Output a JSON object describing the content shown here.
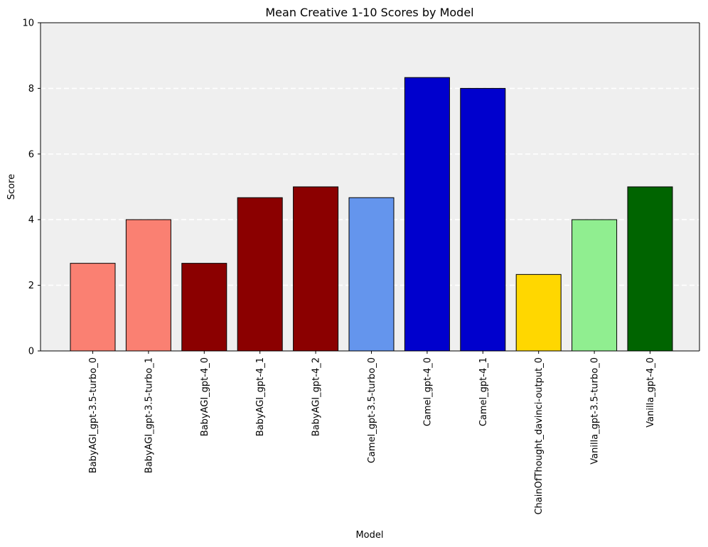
{
  "chart_data": {
    "type": "bar",
    "title": "Mean Creative 1-10 Scores by Model",
    "xlabel": "Model",
    "ylabel": "Score",
    "ylim": [
      0,
      10
    ],
    "yticks": [
      0,
      2,
      4,
      6,
      8,
      10
    ],
    "grid": "horizontal dashed",
    "categories": [
      "BabyAGI_gpt-3.5-turbo_0",
      "BabyAGI_gpt-3.5-turbo_1",
      "BabyAGI_gpt-4_0",
      "BabyAGI_gpt-4_1",
      "BabyAGI_gpt-4_2",
      "Camel_gpt-3.5-turbo_0",
      "Camel_gpt-4_0",
      "Camel_gpt-4_1",
      "ChainOfThought_davinci-output_0",
      "Vanilla_gpt-3.5-turbo_0",
      "Vanilla_gpt-4_0"
    ],
    "values": [
      2.67,
      4.0,
      2.67,
      4.67,
      5.0,
      4.67,
      8.33,
      8.0,
      2.33,
      4.0,
      5.0
    ],
    "colors": [
      "#fa8072",
      "#fa8072",
      "#8b0000",
      "#8b0000",
      "#8b0000",
      "#6495ed",
      "#0000cd",
      "#0000cd",
      "#ffd700",
      "#90ee90",
      "#006400"
    ],
    "plot_background": "#efefef",
    "bar_edge_color": "#000000"
  }
}
